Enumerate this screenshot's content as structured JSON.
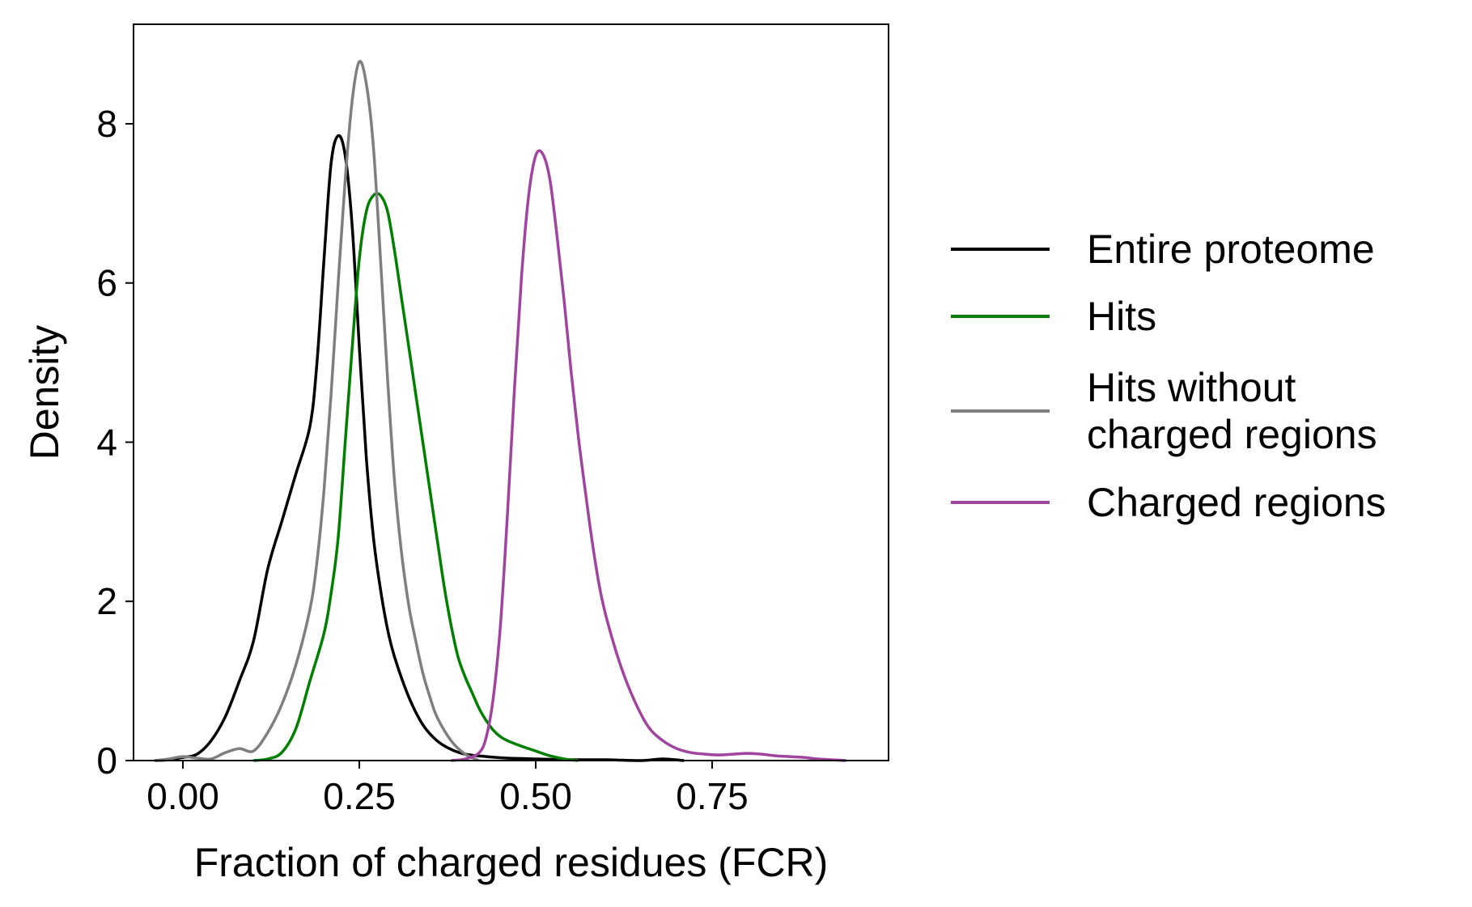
{
  "chart_data": {
    "type": "line",
    "title": "",
    "xlabel": "Fraction of charged residues (FCR)",
    "ylabel": "Density",
    "xlim": [
      -0.07,
      1.0
    ],
    "ylim": [
      0,
      9.25
    ],
    "xticks": [
      0.0,
      0.25,
      0.5,
      0.75
    ],
    "xtick_labels": [
      "0.00",
      "0.25",
      "0.50",
      "0.75"
    ],
    "yticks": [
      0,
      2,
      4,
      6,
      8
    ],
    "ytick_labels": [
      "0",
      "2",
      "4",
      "6",
      "8"
    ],
    "grid": false,
    "legend_placement": "outside-right",
    "series": [
      {
        "name": "Entire proteome",
        "color": "#000000",
        "x": [
          -0.04,
          -0.02,
          0.0,
          0.02,
          0.04,
          0.06,
          0.08,
          0.1,
          0.12,
          0.14,
          0.16,
          0.18,
          0.19,
          0.2,
          0.21,
          0.22,
          0.23,
          0.24,
          0.25,
          0.26,
          0.27,
          0.28,
          0.29,
          0.3,
          0.32,
          0.34,
          0.36,
          0.38,
          0.4,
          0.43,
          0.46,
          0.5,
          0.55,
          0.6,
          0.65,
          0.68,
          0.71
        ],
        "y": [
          0.0,
          0.01,
          0.04,
          0.08,
          0.25,
          0.55,
          1.0,
          1.5,
          2.4,
          3.0,
          3.6,
          4.2,
          5.0,
          6.3,
          7.5,
          7.85,
          7.6,
          6.7,
          5.2,
          3.8,
          2.8,
          2.15,
          1.65,
          1.3,
          0.8,
          0.45,
          0.25,
          0.14,
          0.08,
          0.05,
          0.03,
          0.02,
          0.01,
          0.01,
          0.0,
          0.02,
          0.0
        ]
      },
      {
        "name": "Hits",
        "color": "#007f00",
        "x": [
          0.1,
          0.12,
          0.14,
          0.16,
          0.18,
          0.2,
          0.21,
          0.22,
          0.23,
          0.24,
          0.25,
          0.26,
          0.27,
          0.28,
          0.29,
          0.3,
          0.31,
          0.32,
          0.33,
          0.34,
          0.35,
          0.36,
          0.37,
          0.38,
          0.39,
          0.4,
          0.41,
          0.42,
          0.43,
          0.44,
          0.45,
          0.46,
          0.48,
          0.5,
          0.52,
          0.54,
          0.56
        ],
        "y": [
          0.0,
          0.02,
          0.1,
          0.4,
          1.0,
          1.6,
          2.1,
          2.8,
          4.0,
          5.2,
          6.3,
          6.9,
          7.1,
          7.1,
          6.9,
          6.4,
          5.8,
          5.2,
          4.6,
          4.0,
          3.4,
          2.8,
          2.2,
          1.7,
          1.3,
          1.05,
          0.85,
          0.65,
          0.5,
          0.38,
          0.3,
          0.25,
          0.18,
          0.12,
          0.06,
          0.02,
          0.0
        ]
      },
      {
        "name": "Hits without charged regions",
        "color": "#7f7f7f",
        "x": [
          -0.04,
          -0.02,
          0.0,
          0.02,
          0.04,
          0.06,
          0.08,
          0.1,
          0.12,
          0.14,
          0.16,
          0.18,
          0.19,
          0.2,
          0.21,
          0.22,
          0.23,
          0.24,
          0.25,
          0.26,
          0.27,
          0.28,
          0.29,
          0.3,
          0.31,
          0.32,
          0.33,
          0.34,
          0.35,
          0.36,
          0.38,
          0.4,
          0.42
        ],
        "y": [
          0.0,
          0.02,
          0.05,
          0.03,
          0.02,
          0.1,
          0.15,
          0.12,
          0.35,
          0.7,
          1.2,
          1.9,
          2.5,
          3.4,
          4.6,
          6.0,
          7.3,
          8.3,
          8.78,
          8.5,
          7.7,
          6.3,
          4.8,
          3.5,
          2.6,
          1.95,
          1.5,
          1.1,
          0.8,
          0.55,
          0.25,
          0.08,
          0.0
        ]
      },
      {
        "name": "Charged regions",
        "color": "#a0449f",
        "x": [
          0.38,
          0.4,
          0.42,
          0.43,
          0.44,
          0.45,
          0.46,
          0.47,
          0.48,
          0.49,
          0.5,
          0.51,
          0.52,
          0.53,
          0.54,
          0.55,
          0.56,
          0.57,
          0.58,
          0.59,
          0.6,
          0.62,
          0.64,
          0.66,
          0.68,
          0.7,
          0.72,
          0.74,
          0.76,
          0.78,
          0.8,
          0.82,
          0.84,
          0.86,
          0.88,
          0.9,
          0.94
        ],
        "y": [
          0.0,
          0.02,
          0.1,
          0.3,
          0.8,
          1.7,
          3.1,
          4.7,
          6.1,
          7.1,
          7.6,
          7.62,
          7.3,
          6.6,
          5.8,
          4.9,
          4.1,
          3.4,
          2.75,
          2.2,
          1.8,
          1.2,
          0.75,
          0.42,
          0.25,
          0.15,
          0.1,
          0.08,
          0.07,
          0.08,
          0.09,
          0.08,
          0.06,
          0.05,
          0.04,
          0.02,
          0.0
        ]
      }
    ],
    "legend": {
      "entries": [
        {
          "label_lines": [
            "Entire proteome"
          ],
          "color": "#000000"
        },
        {
          "label_lines": [
            "Hits"
          ],
          "color": "#007f00"
        },
        {
          "label_lines": [
            "Hits without",
            "charged regions"
          ],
          "color": "#7f7f7f"
        },
        {
          "label_lines": [
            "Charged regions"
          ],
          "color": "#a0449f"
        }
      ]
    }
  }
}
